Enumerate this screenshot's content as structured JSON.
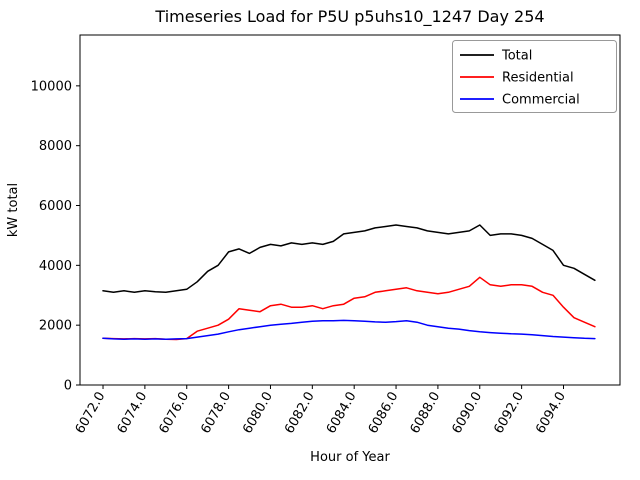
{
  "title": "Timeseries Load for P5U p5uhs10_1247  Day 254",
  "chart_data": {
    "type": "line",
    "title": "Timeseries Load for P5U p5uhs10_1247  Day 254",
    "xlabel": "Hour of Year",
    "ylabel": "kW total",
    "xlim": [
      6070.9,
      6096.7
    ],
    "ylim": [
      0,
      11700
    ],
    "grid": false,
    "legend_position": "upper right",
    "x_ticks": [
      6072,
      6074,
      6076,
      6078,
      6080,
      6082,
      6084,
      6086,
      6088,
      6090,
      6092,
      6094
    ],
    "x_tick_labels": [
      "6072.0",
      "6074.0",
      "6076.0",
      "6078.0",
      "6080.0",
      "6082.0",
      "6084.0",
      "6086.0",
      "6088.0",
      "6090.0",
      "6092.0",
      "6094.0"
    ],
    "y_ticks": [
      0,
      2000,
      4000,
      6000,
      8000,
      10000
    ],
    "y_tick_labels": [
      "0",
      "2000",
      "4000",
      "6000",
      "8000",
      "10000"
    ],
    "x": [
      6072.0,
      6072.5,
      6073.0,
      6073.5,
      6074.0,
      6074.5,
      6075.0,
      6075.5,
      6076.0,
      6076.5,
      6077.0,
      6077.5,
      6078.0,
      6078.5,
      6079.0,
      6079.5,
      6080.0,
      6080.5,
      6081.0,
      6081.5,
      6082.0,
      6082.5,
      6083.0,
      6083.5,
      6084.0,
      6084.5,
      6085.0,
      6085.5,
      6086.0,
      6086.5,
      6087.0,
      6087.5,
      6088.0,
      6088.5,
      6089.0,
      6089.5,
      6090.0,
      6090.5,
      6091.0,
      6091.5,
      6092.0,
      6092.5,
      6093.0,
      6093.5,
      6094.0,
      6094.5,
      6095.0,
      6095.5
    ],
    "series": [
      {
        "name": "Total",
        "color": "#000000",
        "values": [
          3150,
          3100,
          3150,
          3100,
          3150,
          3120,
          3100,
          3150,
          3200,
          3450,
          3800,
          4000,
          4450,
          4550,
          4400,
          4600,
          4700,
          4650,
          4750,
          4700,
          4750,
          4700,
          4800,
          5050,
          5100,
          5150,
          5250,
          5300,
          5350,
          5300,
          5250,
          5150,
          5100,
          5050,
          5100,
          5150,
          5350,
          5000,
          5050,
          5050,
          5000,
          4900,
          4700,
          4500,
          4000,
          3900,
          3700,
          3500
        ]
      },
      {
        "name": "Residential",
        "color": "#ff0000",
        "values": [
          1560,
          1550,
          1540,
          1550,
          1540,
          1550,
          1530,
          1520,
          1550,
          1800,
          1900,
          2000,
          2200,
          2550,
          2500,
          2450,
          2650,
          2700,
          2600,
          2600,
          2650,
          2550,
          2650,
          2700,
          2900,
          2950,
          3100,
          3150,
          3200,
          3250,
          3150,
          3100,
          3050,
          3100,
          3200,
          3300,
          3600,
          3350,
          3300,
          3350,
          3350,
          3300,
          3100,
          3000,
          2600,
          2250,
          2100,
          1950
        ]
      },
      {
        "name": "Commercial",
        "color": "#0000ff",
        "values": [
          1560,
          1540,
          1530,
          1540,
          1530,
          1540,
          1530,
          1540,
          1550,
          1600,
          1650,
          1700,
          1780,
          1850,
          1900,
          1950,
          2000,
          2030,
          2060,
          2100,
          2130,
          2150,
          2150,
          2160,
          2150,
          2130,
          2110,
          2100,
          2120,
          2150,
          2100,
          2000,
          1950,
          1900,
          1870,
          1820,
          1780,
          1750,
          1730,
          1710,
          1700,
          1680,
          1650,
          1620,
          1600,
          1580,
          1560,
          1550
        ]
      }
    ]
  }
}
